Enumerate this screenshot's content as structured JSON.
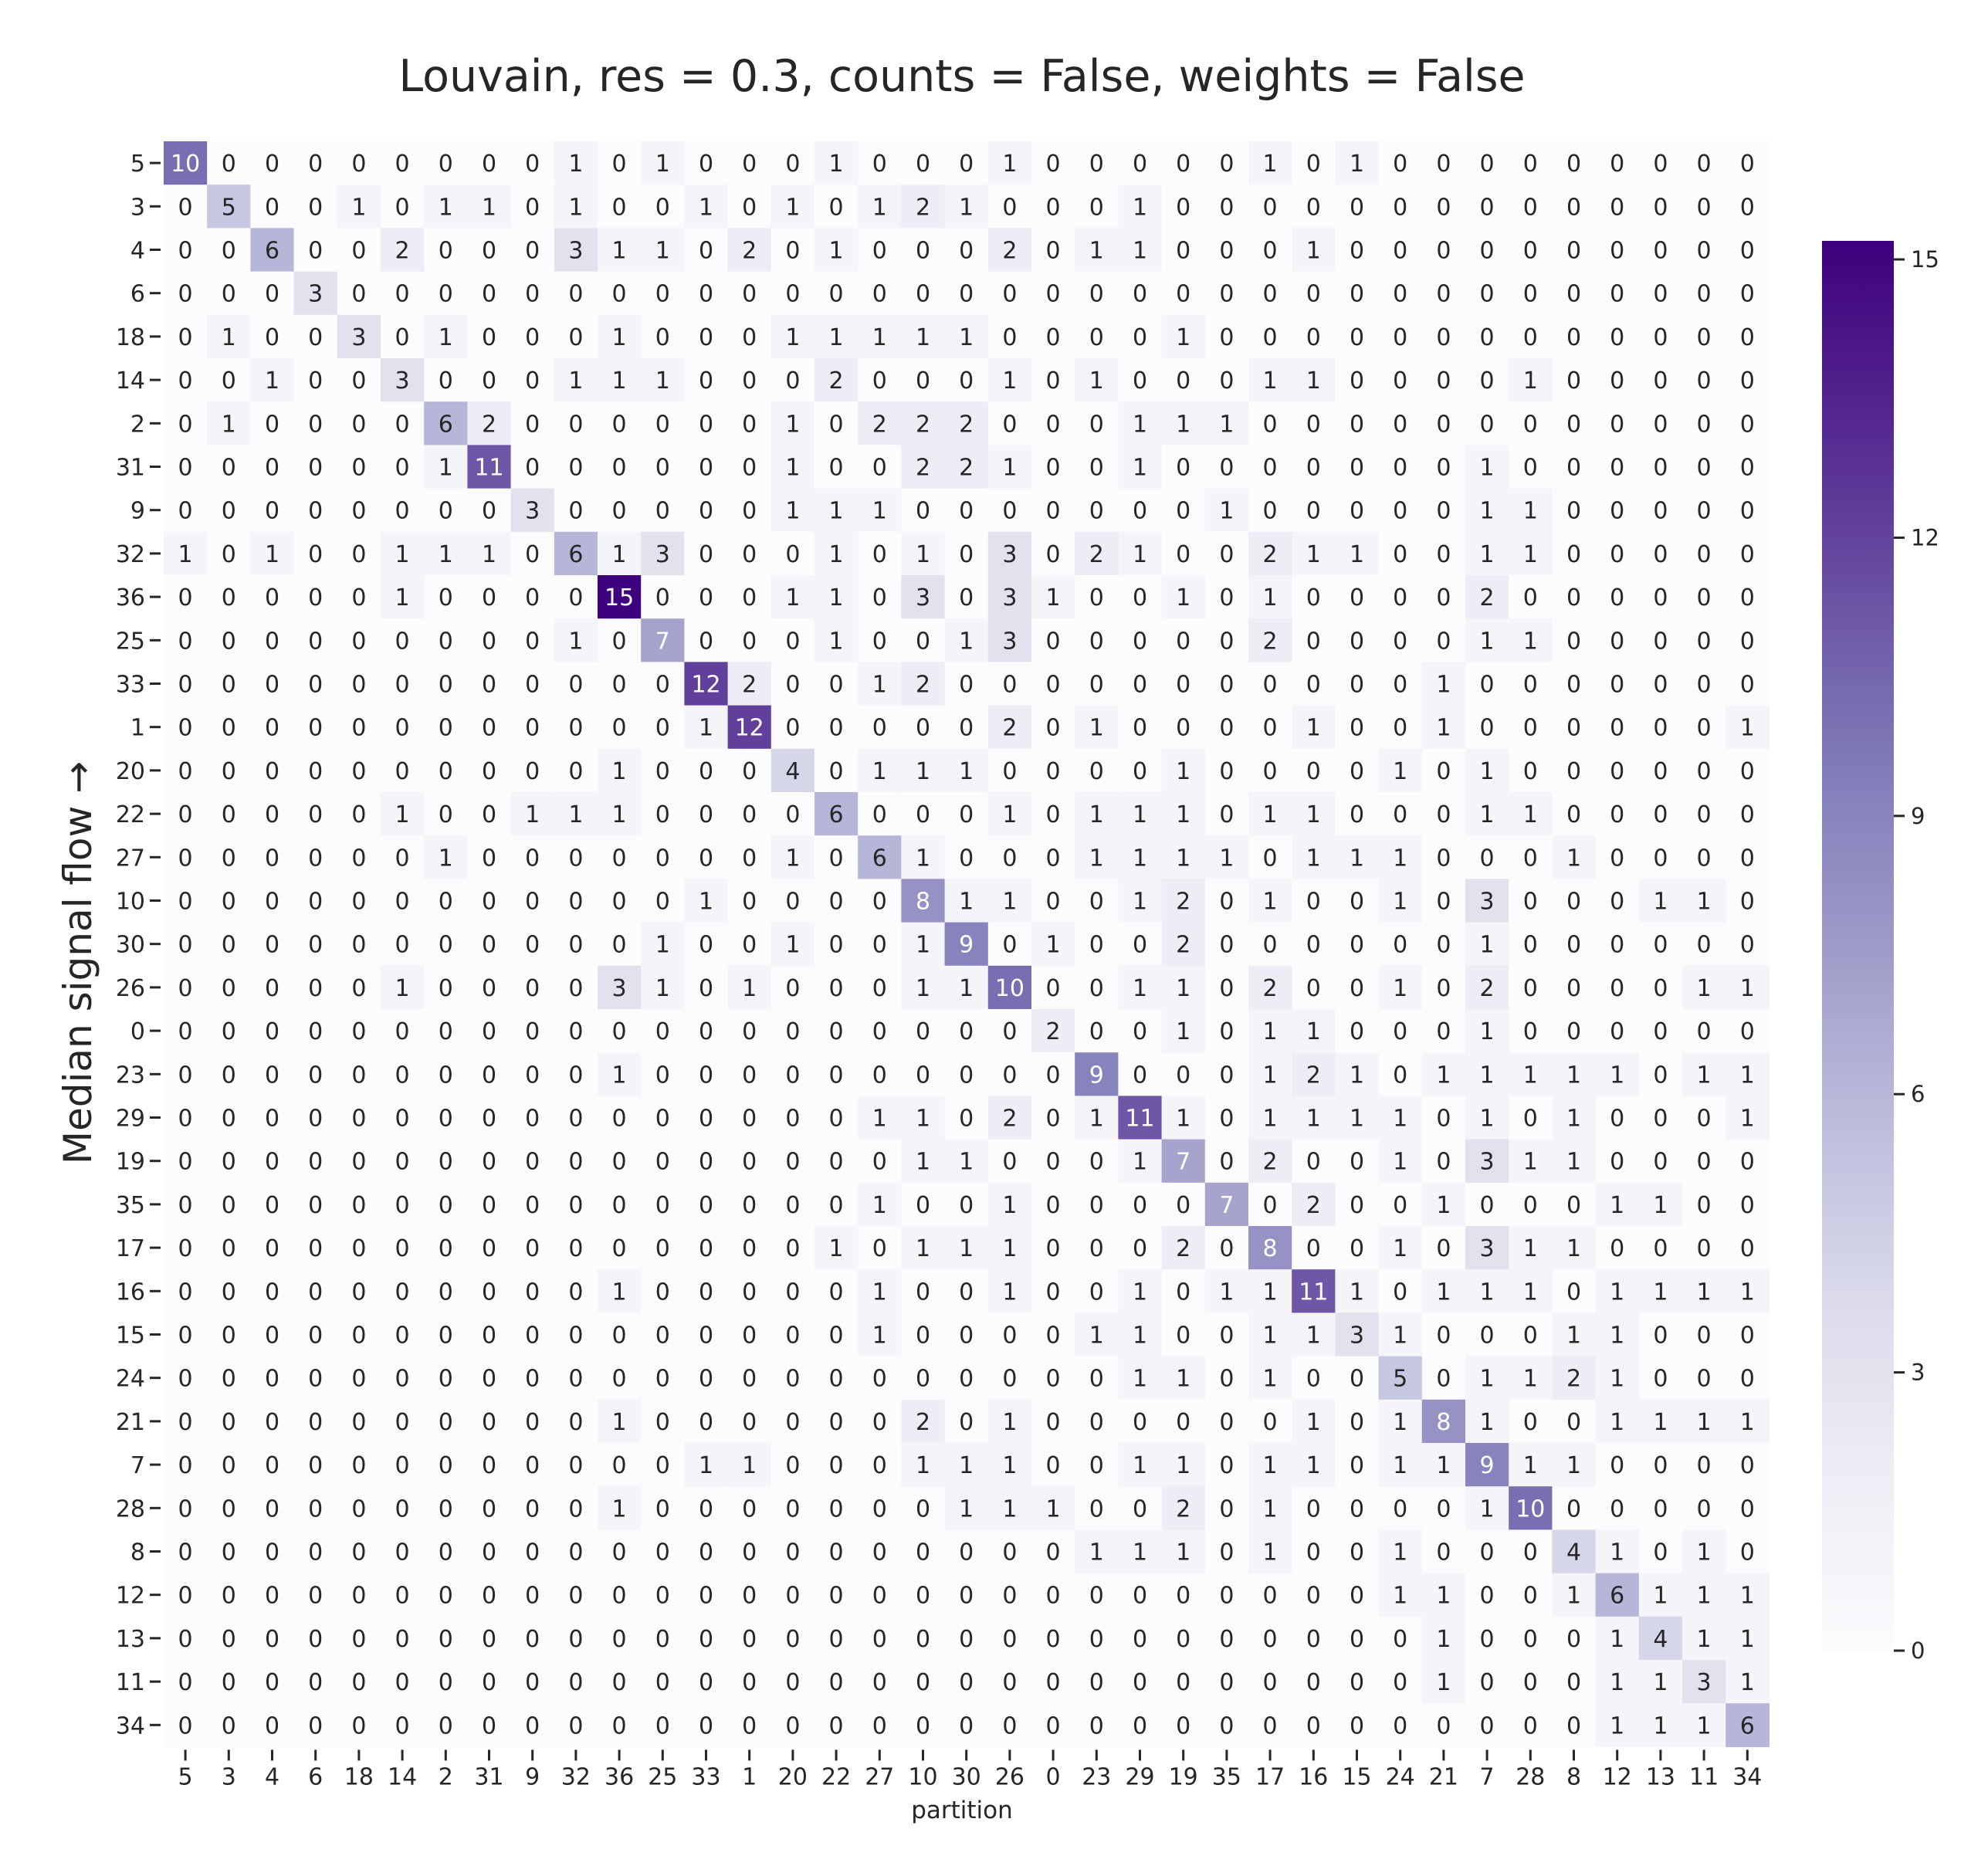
{
  "chart_data": {
    "type": "heatmap",
    "title": "Louvain, res = 0.3, counts = False, weights = False",
    "xlabel": "partition",
    "ylabel": "Median signal flow →",
    "x_categories": [
      "5",
      "3",
      "4",
      "6",
      "18",
      "14",
      "2",
      "31",
      "9",
      "32",
      "36",
      "25",
      "33",
      "1",
      "20",
      "22",
      "27",
      "10",
      "30",
      "26",
      "0",
      "23",
      "29",
      "19",
      "35",
      "17",
      "16",
      "15",
      "24",
      "21",
      "7",
      "28",
      "8",
      "12",
      "13",
      "11",
      "34"
    ],
    "y_categories": [
      "5",
      "3",
      "4",
      "6",
      "18",
      "14",
      "2",
      "31",
      "9",
      "32",
      "36",
      "25",
      "33",
      "1",
      "20",
      "22",
      "27",
      "10",
      "30",
      "26",
      "0",
      "23",
      "29",
      "19",
      "35",
      "17",
      "16",
      "15",
      "24",
      "21",
      "7",
      "28",
      "8",
      "12",
      "13",
      "11",
      "34"
    ],
    "values": [
      [
        10,
        0,
        0,
        0,
        0,
        0,
        0,
        0,
        0,
        1,
        0,
        1,
        0,
        0,
        0,
        1,
        0,
        0,
        0,
        1,
        0,
        0,
        0,
        0,
        0,
        1,
        0,
        1,
        0,
        0,
        0,
        0,
        0,
        0,
        0,
        0,
        0
      ],
      [
        0,
        5,
        0,
        0,
        1,
        0,
        1,
        1,
        0,
        1,
        0,
        0,
        1,
        0,
        1,
        0,
        1,
        2,
        1,
        0,
        0,
        0,
        1,
        0,
        0,
        0,
        0,
        0,
        0,
        0,
        0,
        0,
        0,
        0,
        0,
        0,
        0
      ],
      [
        0,
        0,
        6,
        0,
        0,
        2,
        0,
        0,
        0,
        3,
        1,
        1,
        0,
        2,
        0,
        1,
        0,
        0,
        0,
        2,
        0,
        1,
        1,
        0,
        0,
        0,
        1,
        0,
        0,
        0,
        0,
        0,
        0,
        0,
        0,
        0,
        0
      ],
      [
        0,
        0,
        0,
        3,
        0,
        0,
        0,
        0,
        0,
        0,
        0,
        0,
        0,
        0,
        0,
        0,
        0,
        0,
        0,
        0,
        0,
        0,
        0,
        0,
        0,
        0,
        0,
        0,
        0,
        0,
        0,
        0,
        0,
        0,
        0,
        0,
        0
      ],
      [
        0,
        1,
        0,
        0,
        3,
        0,
        1,
        0,
        0,
        0,
        1,
        0,
        0,
        0,
        1,
        1,
        1,
        1,
        1,
        0,
        0,
        0,
        0,
        1,
        0,
        0,
        0,
        0,
        0,
        0,
        0,
        0,
        0,
        0,
        0,
        0,
        0
      ],
      [
        0,
        0,
        1,
        0,
        0,
        3,
        0,
        0,
        0,
        1,
        1,
        1,
        0,
        0,
        0,
        2,
        0,
        0,
        0,
        1,
        0,
        1,
        0,
        0,
        0,
        1,
        1,
        0,
        0,
        0,
        0,
        1,
        0,
        0,
        0,
        0,
        0
      ],
      [
        0,
        1,
        0,
        0,
        0,
        0,
        6,
        2,
        0,
        0,
        0,
        0,
        0,
        0,
        1,
        0,
        2,
        2,
        2,
        0,
        0,
        0,
        1,
        1,
        1,
        0,
        0,
        0,
        0,
        0,
        0,
        0,
        0,
        0,
        0,
        0,
        0
      ],
      [
        0,
        0,
        0,
        0,
        0,
        0,
        1,
        11,
        0,
        0,
        0,
        0,
        0,
        0,
        1,
        0,
        0,
        2,
        2,
        1,
        0,
        0,
        1,
        0,
        0,
        0,
        0,
        0,
        0,
        0,
        1,
        0,
        0,
        0,
        0,
        0,
        0
      ],
      [
        0,
        0,
        0,
        0,
        0,
        0,
        0,
        0,
        3,
        0,
        0,
        0,
        0,
        0,
        1,
        1,
        1,
        0,
        0,
        0,
        0,
        0,
        0,
        0,
        1,
        0,
        0,
        0,
        0,
        0,
        1,
        1,
        0,
        0,
        0,
        0,
        0
      ],
      [
        1,
        0,
        1,
        0,
        0,
        1,
        1,
        1,
        0,
        6,
        1,
        3,
        0,
        0,
        0,
        1,
        0,
        1,
        0,
        3,
        0,
        2,
        1,
        0,
        0,
        2,
        1,
        1,
        0,
        0,
        1,
        1,
        0,
        0,
        0,
        0,
        0
      ],
      [
        0,
        0,
        0,
        0,
        0,
        1,
        0,
        0,
        0,
        0,
        15,
        0,
        0,
        0,
        1,
        1,
        0,
        3,
        0,
        3,
        1,
        0,
        0,
        1,
        0,
        1,
        0,
        0,
        0,
        0,
        2,
        0,
        0,
        0,
        0,
        0,
        0
      ],
      [
        0,
        0,
        0,
        0,
        0,
        0,
        0,
        0,
        0,
        1,
        0,
        7,
        0,
        0,
        0,
        1,
        0,
        0,
        1,
        3,
        0,
        0,
        0,
        0,
        0,
        2,
        0,
        0,
        0,
        0,
        1,
        1,
        0,
        0,
        0,
        0,
        0
      ],
      [
        0,
        0,
        0,
        0,
        0,
        0,
        0,
        0,
        0,
        0,
        0,
        0,
        12,
        2,
        0,
        0,
        1,
        2,
        0,
        0,
        0,
        0,
        0,
        0,
        0,
        0,
        0,
        0,
        0,
        1,
        0,
        0,
        0,
        0,
        0,
        0,
        0
      ],
      [
        0,
        0,
        0,
        0,
        0,
        0,
        0,
        0,
        0,
        0,
        0,
        0,
        1,
        12,
        0,
        0,
        0,
        0,
        0,
        2,
        0,
        1,
        0,
        0,
        0,
        0,
        1,
        0,
        0,
        1,
        0,
        0,
        0,
        0,
        0,
        0,
        1
      ],
      [
        0,
        0,
        0,
        0,
        0,
        0,
        0,
        0,
        0,
        0,
        1,
        0,
        0,
        0,
        4,
        0,
        1,
        1,
        1,
        0,
        0,
        0,
        0,
        1,
        0,
        0,
        0,
        0,
        1,
        0,
        1,
        0,
        0,
        0,
        0,
        0,
        0
      ],
      [
        0,
        0,
        0,
        0,
        0,
        1,
        0,
        0,
        1,
        1,
        1,
        0,
        0,
        0,
        0,
        6,
        0,
        0,
        0,
        1,
        0,
        1,
        1,
        1,
        0,
        1,
        1,
        0,
        0,
        0,
        1,
        1,
        0,
        0,
        0,
        0,
        0
      ],
      [
        0,
        0,
        0,
        0,
        0,
        0,
        1,
        0,
        0,
        0,
        0,
        0,
        0,
        0,
        1,
        0,
        6,
        1,
        0,
        0,
        0,
        1,
        1,
        1,
        1,
        0,
        1,
        1,
        1,
        0,
        0,
        0,
        1,
        0,
        0,
        0,
        0
      ],
      [
        0,
        0,
        0,
        0,
        0,
        0,
        0,
        0,
        0,
        0,
        0,
        0,
        1,
        0,
        0,
        0,
        0,
        8,
        1,
        1,
        0,
        0,
        1,
        2,
        0,
        1,
        0,
        0,
        1,
        0,
        3,
        0,
        0,
        0,
        1,
        1,
        0
      ],
      [
        0,
        0,
        0,
        0,
        0,
        0,
        0,
        0,
        0,
        0,
        0,
        1,
        0,
        0,
        1,
        0,
        0,
        1,
        9,
        0,
        1,
        0,
        0,
        2,
        0,
        0,
        0,
        0,
        0,
        0,
        1,
        0,
        0,
        0,
        0,
        0,
        0
      ],
      [
        0,
        0,
        0,
        0,
        0,
        1,
        0,
        0,
        0,
        0,
        3,
        1,
        0,
        1,
        0,
        0,
        0,
        1,
        1,
        10,
        0,
        0,
        1,
        1,
        0,
        2,
        0,
        0,
        1,
        0,
        2,
        0,
        0,
        0,
        0,
        1,
        1
      ],
      [
        0,
        0,
        0,
        0,
        0,
        0,
        0,
        0,
        0,
        0,
        0,
        0,
        0,
        0,
        0,
        0,
        0,
        0,
        0,
        0,
        2,
        0,
        0,
        1,
        0,
        1,
        1,
        0,
        0,
        0,
        1,
        0,
        0,
        0,
        0,
        0,
        0
      ],
      [
        0,
        0,
        0,
        0,
        0,
        0,
        0,
        0,
        0,
        0,
        1,
        0,
        0,
        0,
        0,
        0,
        0,
        0,
        0,
        0,
        0,
        9,
        0,
        0,
        0,
        1,
        2,
        1,
        0,
        1,
        1,
        1,
        1,
        1,
        0,
        1,
        1
      ],
      [
        0,
        0,
        0,
        0,
        0,
        0,
        0,
        0,
        0,
        0,
        0,
        0,
        0,
        0,
        0,
        0,
        1,
        1,
        0,
        2,
        0,
        1,
        11,
        1,
        0,
        1,
        1,
        1,
        1,
        0,
        1,
        0,
        1,
        0,
        0,
        0,
        1
      ],
      [
        0,
        0,
        0,
        0,
        0,
        0,
        0,
        0,
        0,
        0,
        0,
        0,
        0,
        0,
        0,
        0,
        0,
        1,
        1,
        0,
        0,
        0,
        1,
        7,
        0,
        2,
        0,
        0,
        1,
        0,
        3,
        1,
        1,
        0,
        0,
        0,
        0
      ],
      [
        0,
        0,
        0,
        0,
        0,
        0,
        0,
        0,
        0,
        0,
        0,
        0,
        0,
        0,
        0,
        0,
        1,
        0,
        0,
        1,
        0,
        0,
        0,
        0,
        7,
        0,
        2,
        0,
        0,
        1,
        0,
        0,
        0,
        1,
        1,
        0,
        0
      ],
      [
        0,
        0,
        0,
        0,
        0,
        0,
        0,
        0,
        0,
        0,
        0,
        0,
        0,
        0,
        0,
        1,
        0,
        1,
        1,
        1,
        0,
        0,
        0,
        2,
        0,
        8,
        0,
        0,
        1,
        0,
        3,
        1,
        1,
        0,
        0,
        0,
        0
      ],
      [
        0,
        0,
        0,
        0,
        0,
        0,
        0,
        0,
        0,
        0,
        1,
        0,
        0,
        0,
        0,
        0,
        1,
        0,
        0,
        1,
        0,
        0,
        1,
        0,
        1,
        1,
        11,
        1,
        0,
        1,
        1,
        1,
        0,
        1,
        1,
        1,
        1
      ],
      [
        0,
        0,
        0,
        0,
        0,
        0,
        0,
        0,
        0,
        0,
        0,
        0,
        0,
        0,
        0,
        0,
        1,
        0,
        0,
        0,
        0,
        1,
        1,
        0,
        0,
        1,
        1,
        3,
        1,
        0,
        0,
        0,
        1,
        1,
        0,
        0,
        0
      ],
      [
        0,
        0,
        0,
        0,
        0,
        0,
        0,
        0,
        0,
        0,
        0,
        0,
        0,
        0,
        0,
        0,
        0,
        0,
        0,
        0,
        0,
        0,
        1,
        1,
        0,
        1,
        0,
        0,
        5,
        0,
        1,
        1,
        2,
        1,
        0,
        0,
        0
      ],
      [
        0,
        0,
        0,
        0,
        0,
        0,
        0,
        0,
        0,
        0,
        1,
        0,
        0,
        0,
        0,
        0,
        0,
        2,
        0,
        1,
        0,
        0,
        0,
        0,
        0,
        0,
        1,
        0,
        1,
        8,
        1,
        0,
        0,
        1,
        1,
        1,
        1
      ],
      [
        0,
        0,
        0,
        0,
        0,
        0,
        0,
        0,
        0,
        0,
        0,
        0,
        1,
        1,
        0,
        0,
        0,
        1,
        1,
        1,
        0,
        0,
        1,
        1,
        0,
        1,
        1,
        0,
        1,
        1,
        9,
        1,
        1,
        0,
        0,
        0,
        0
      ],
      [
        0,
        0,
        0,
        0,
        0,
        0,
        0,
        0,
        0,
        0,
        1,
        0,
        0,
        0,
        0,
        0,
        0,
        0,
        1,
        1,
        1,
        0,
        0,
        2,
        0,
        1,
        0,
        0,
        0,
        0,
        1,
        10,
        0,
        0,
        0,
        0,
        0
      ],
      [
        0,
        0,
        0,
        0,
        0,
        0,
        0,
        0,
        0,
        0,
        0,
        0,
        0,
        0,
        0,
        0,
        0,
        0,
        0,
        0,
        0,
        1,
        1,
        1,
        0,
        1,
        0,
        0,
        1,
        0,
        0,
        0,
        4,
        1,
        0,
        1,
        0
      ],
      [
        0,
        0,
        0,
        0,
        0,
        0,
        0,
        0,
        0,
        0,
        0,
        0,
        0,
        0,
        0,
        0,
        0,
        0,
        0,
        0,
        0,
        0,
        0,
        0,
        0,
        0,
        0,
        0,
        1,
        1,
        0,
        0,
        1,
        6,
        1,
        1,
        1
      ],
      [
        0,
        0,
        0,
        0,
        0,
        0,
        0,
        0,
        0,
        0,
        0,
        0,
        0,
        0,
        0,
        0,
        0,
        0,
        0,
        0,
        0,
        0,
        0,
        0,
        0,
        0,
        0,
        0,
        0,
        1,
        0,
        0,
        0,
        1,
        4,
        1,
        1
      ],
      [
        0,
        0,
        0,
        0,
        0,
        0,
        0,
        0,
        0,
        0,
        0,
        0,
        0,
        0,
        0,
        0,
        0,
        0,
        0,
        0,
        0,
        0,
        0,
        0,
        0,
        0,
        0,
        0,
        0,
        1,
        0,
        0,
        0,
        1,
        1,
        3,
        1
      ],
      [
        0,
        0,
        0,
        0,
        0,
        0,
        0,
        0,
        0,
        0,
        0,
        0,
        0,
        0,
        0,
        0,
        0,
        0,
        0,
        0,
        0,
        0,
        0,
        0,
        0,
        0,
        0,
        0,
        0,
        0,
        0,
        0,
        0,
        1,
        1,
        1,
        6
      ]
    ],
    "colorbar": {
      "min": 0,
      "max": 15,
      "ticks": [
        0,
        3,
        6,
        9,
        12,
        15
      ]
    },
    "colormap": "Purples",
    "colors": {
      "low": "#fcfbfd",
      "high": "#3f007d"
    },
    "grid": false,
    "annotated": true
  }
}
